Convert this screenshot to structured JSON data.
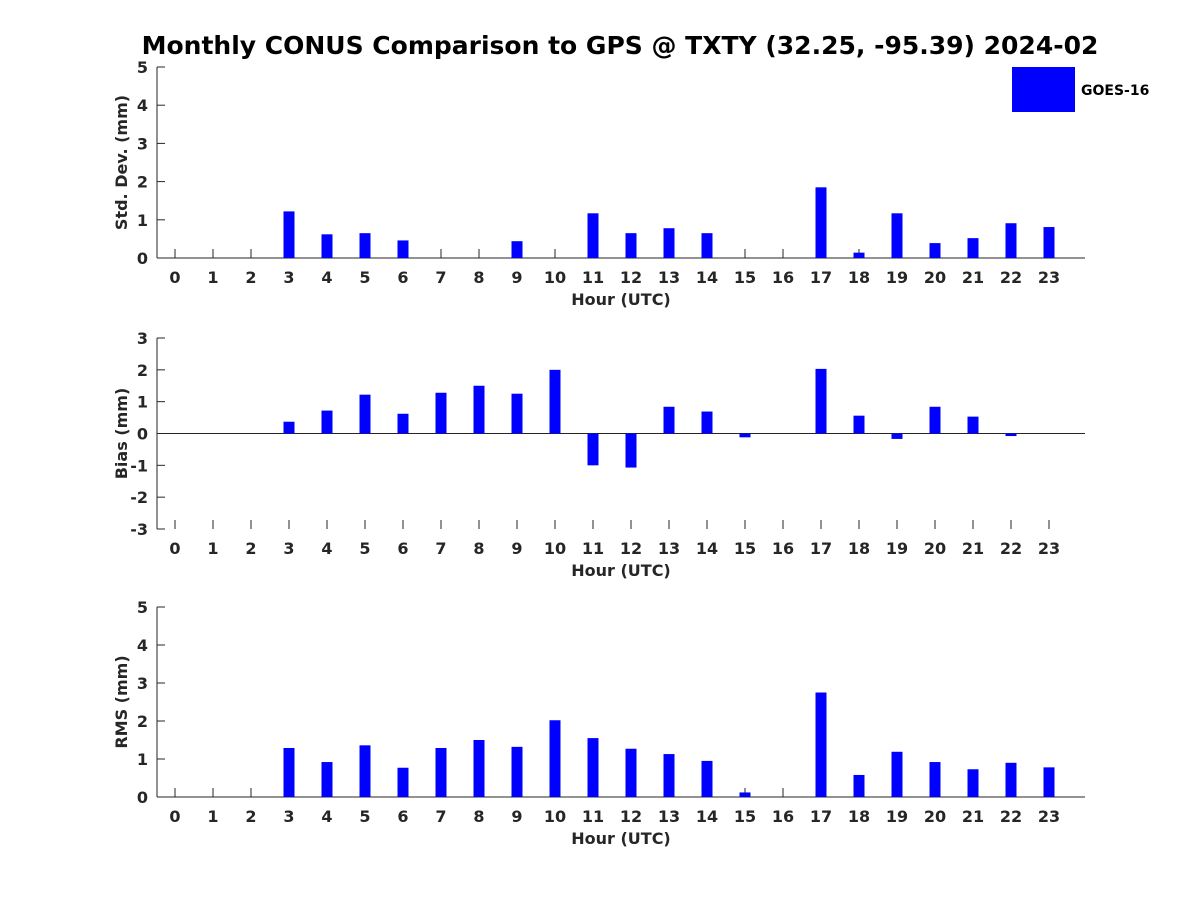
{
  "title": "Monthly CONUS Comparison to GPS @ TXTY (32.25, -95.39) 2024-02",
  "legend": {
    "label": "GOES-16",
    "color": "#0000ff",
    "placement": "top-right"
  },
  "chart_data": [
    {
      "type": "bar",
      "ylabel": "Std. Dev. (mm)",
      "xlabel": "Hour (UTC)",
      "ylim": [
        0,
        5
      ],
      "yticks": [
        0,
        1,
        2,
        3,
        4,
        5
      ],
      "categories": [
        "0",
        "1",
        "2",
        "3",
        "4",
        "5",
        "6",
        "7",
        "8",
        "9",
        "10",
        "11",
        "12",
        "13",
        "14",
        "15",
        "16",
        "17",
        "18",
        "19",
        "20",
        "21",
        "22",
        "23"
      ],
      "series": [
        {
          "values": [
            0,
            0,
            0,
            1.22,
            0.62,
            0.65,
            0.46,
            0,
            0,
            0.44,
            0,
            1.17,
            0.65,
            0.78,
            0.65,
            0,
            0,
            1.85,
            0.14,
            1.17,
            0.39,
            0.52,
            0.91,
            0.81
          ]
        }
      ]
    },
    {
      "type": "bar",
      "ylabel": "Bias (mm)",
      "xlabel": "Hour (UTC)",
      "ylim": [
        -3,
        3
      ],
      "yticks": [
        -3,
        -2,
        -1,
        0,
        1,
        2,
        3
      ],
      "categories": [
        "0",
        "1",
        "2",
        "3",
        "4",
        "5",
        "6",
        "7",
        "8",
        "9",
        "10",
        "11",
        "12",
        "13",
        "14",
        "15",
        "16",
        "17",
        "18",
        "19",
        "20",
        "21",
        "22",
        "23"
      ],
      "series": [
        {
          "values": [
            0,
            0,
            0,
            0.37,
            0.72,
            1.22,
            0.62,
            1.28,
            1.5,
            1.25,
            2.0,
            -1.0,
            -1.07,
            0.84,
            0.69,
            -0.12,
            0,
            2.03,
            0.56,
            -0.17,
            0.84,
            0.53,
            -0.08,
            0
          ]
        }
      ]
    },
    {
      "type": "bar",
      "ylabel": "RMS (mm)",
      "xlabel": "Hour (UTC)",
      "ylim": [
        0,
        5
      ],
      "yticks": [
        0,
        1,
        2,
        3,
        4,
        5
      ],
      "categories": [
        "0",
        "1",
        "2",
        "3",
        "4",
        "5",
        "6",
        "7",
        "8",
        "9",
        "10",
        "11",
        "12",
        "13",
        "14",
        "15",
        "16",
        "17",
        "18",
        "19",
        "20",
        "21",
        "22",
        "23"
      ],
      "series": [
        {
          "values": [
            0,
            0,
            0,
            1.29,
            0.92,
            1.36,
            0.77,
            1.29,
            1.5,
            1.32,
            2.02,
            1.55,
            1.27,
            1.13,
            0.95,
            0.12,
            0,
            2.75,
            0.58,
            1.19,
            0.92,
            0.73,
            0.9,
            0.78
          ]
        }
      ]
    }
  ]
}
